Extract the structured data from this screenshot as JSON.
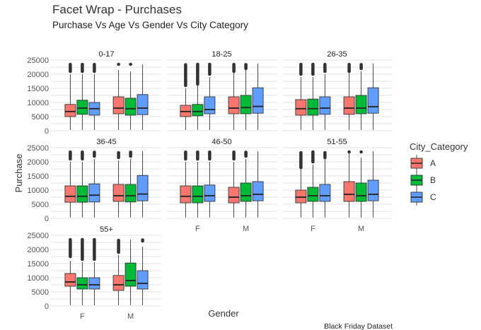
{
  "chart_data": {
    "type": "boxplot",
    "title": "Facet Wrap - Purchases",
    "subtitle": "Purchase Vs Age Vs Gender Vs City Category",
    "xlabel": "Gender",
    "ylabel": "Purchase",
    "caption": "Black Friday Dataset",
    "ylim": [
      0,
      25000
    ],
    "yticks": [
      0,
      5000,
      10000,
      15000,
      20000,
      25000
    ],
    "ytick_labels": [
      "0",
      "5000",
      "10000",
      "15000",
      "20000",
      "25000"
    ],
    "x_categories": [
      "F",
      "M"
    ],
    "legend": {
      "title": "City_Category",
      "position": "right",
      "entries": [
        {
          "label": "A",
          "color": "#F8766D"
        },
        {
          "label": "B",
          "color": "#00BA38"
        },
        {
          "label": "C",
          "color": "#619CFF"
        }
      ]
    },
    "grid": true,
    "facets": [
      {
        "label": "0-17",
        "boxes": {
          "F": {
            "A": [
              300,
              5000,
              6800,
              9300,
              20000,
              21000,
              23500
            ],
            "B": [
              300,
              5800,
              8000,
              10800,
              20000,
              21000,
              23500
            ],
            "C": [
              300,
              5500,
              7800,
              10000,
              20000,
              21000,
              23500
            ]
          },
          "M": {
            "A": [
              300,
              6000,
              8000,
              12000,
              21500,
              23500,
              23500
            ],
            "B": [
              300,
              5500,
              7800,
              11500,
              21000,
              23500,
              23500
            ],
            "C": [
              300,
              5700,
              8000,
              12800,
              23500,
              23500,
              23500
            ]
          }
        }
      },
      {
        "label": "18-25",
        "boxes": {
          "F": {
            "A": [
              300,
              5000,
              6800,
              9000,
              15000,
              16000,
              23500
            ],
            "B": [
              300,
              5300,
              6800,
              9300,
              16000,
              16500,
              23500
            ],
            "C": [
              300,
              6000,
              7500,
              12000,
              19000,
              20000,
              23500
            ]
          },
          "M": {
            "A": [
              300,
              6000,
              8000,
              12000,
              20500,
              21000,
              23500
            ],
            "B": [
              300,
              6000,
              8200,
              12500,
              21500,
              22000,
              23500
            ],
            "C": [
              300,
              6200,
              8600,
              15200,
              23800,
              23800,
              23800
            ]
          }
        }
      },
      {
        "label": "26-35",
        "boxes": {
          "F": {
            "A": [
              300,
              5500,
              7800,
              11000,
              19000,
              20000,
              23500
            ],
            "B": [
              300,
              5500,
              7800,
              11200,
              19000,
              20000,
              23500
            ],
            "C": [
              300,
              5800,
              8000,
              12000,
              20000,
              21000,
              23500
            ]
          },
          "M": {
            "A": [
              300,
              5800,
              8000,
              12000,
              20500,
              21000,
              23500
            ],
            "B": [
              300,
              6000,
              8000,
              12500,
              21000,
              22000,
              23500
            ],
            "C": [
              300,
              6200,
              8500,
              15200,
              23800,
              23800,
              23800
            ]
          }
        }
      },
      {
        "label": "36-45",
        "boxes": {
          "F": {
            "A": [
              300,
              5700,
              7800,
              11500,
              20000,
              21000,
              23500
            ],
            "B": [
              300,
              5700,
              7800,
              11500,
              20000,
              21000,
              23500
            ],
            "C": [
              300,
              5800,
              8200,
              12200,
              21000,
              22000,
              23500
            ]
          },
          "M": {
            "A": [
              300,
              6000,
              8000,
              12000,
              20500,
              21500,
              23500
            ],
            "B": [
              300,
              5800,
              8000,
              12000,
              21000,
              22000,
              23500
            ],
            "C": [
              300,
              6200,
              8600,
              15200,
              23800,
              23800,
              23800
            ]
          }
        }
      },
      {
        "label": "46-50",
        "boxes": {
          "F": {
            "A": [
              300,
              5500,
              7800,
              11500,
              20000,
              21000,
              23500
            ],
            "B": [
              300,
              5500,
              7800,
              11500,
              20000,
              21000,
              23500
            ],
            "C": [
              300,
              6000,
              8000,
              11800,
              20000,
              21000,
              23500
            ]
          },
          "M": {
            "A": [
              300,
              5500,
              7500,
              11000,
              20000,
              21000,
              23500
            ],
            "B": [
              300,
              6000,
              8000,
              12500,
              21000,
              22000,
              23500
            ],
            "C": [
              300,
              6200,
              8500,
              13000,
              23800,
              23800,
              23800
            ]
          }
        }
      },
      {
        "label": "51-55",
        "boxes": {
          "F": {
            "A": [
              300,
              5500,
              7500,
              10000,
              17500,
              18000,
              23500
            ],
            "B": [
              300,
              6000,
              8000,
              11000,
              19000,
              20000,
              23500
            ],
            "C": [
              300,
              6000,
              8000,
              12000,
              21000,
              21500,
              23500
            ]
          },
          "M": {
            "A": [
              300,
              6000,
              8500,
              13000,
              23000,
              23500,
              23500
            ],
            "B": [
              300,
              6000,
              8000,
              12500,
              21500,
              23500,
              23500
            ],
            "C": [
              300,
              6200,
              8500,
              13500,
              23800,
              23800,
              23800
            ]
          }
        }
      },
      {
        "label": "55+",
        "boxes": {
          "F": {
            "A": [
              300,
              7000,
              8500,
              11500,
              16000,
              17500,
              23500
            ],
            "B": [
              300,
              6000,
              7500,
              10000,
              15500,
              16500,
              23500
            ],
            "C": [
              300,
              6000,
              7500,
              10000,
              15500,
              16500,
              23500
            ]
          },
          "M": {
            "A": [
              300,
              5500,
              7500,
              10800,
              18000,
              19000,
              23500
            ],
            "B": [
              300,
              7000,
              9000,
              15200,
              23500,
              23500,
              23500
            ],
            "C": [
              300,
              6000,
              8000,
              12500,
              21000,
              23000,
              23500
            ]
          }
        }
      }
    ]
  }
}
